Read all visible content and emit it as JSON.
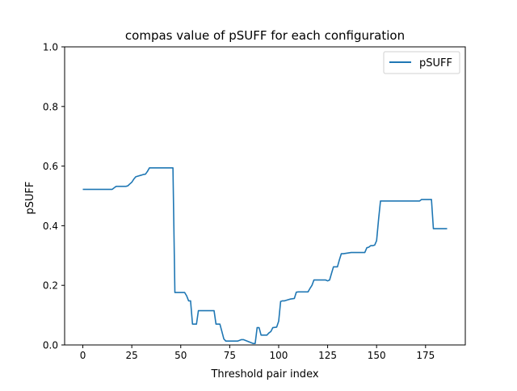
{
  "chart_data": {
    "type": "line",
    "title": "compas value of pSUFF for each configuration",
    "xlabel": "Threshold pair index",
    "ylabel": "pSUFF",
    "xlim": [
      -9.3,
      195.3
    ],
    "ylim": [
      0.0,
      1.0
    ],
    "x_ticks": [
      0,
      25,
      50,
      75,
      100,
      125,
      150,
      175
    ],
    "y_ticks": [
      0.0,
      0.2,
      0.4,
      0.6,
      0.8,
      1.0
    ],
    "x_tick_labels": [
      "0",
      "25",
      "50",
      "75",
      "100",
      "125",
      "150",
      "175"
    ],
    "y_tick_labels": [
      "0.0",
      "0.2",
      "0.4",
      "0.6",
      "0.8",
      "1.0"
    ],
    "grid": false,
    "legend": {
      "position": "top-right",
      "entries": [
        "pSUFF"
      ]
    },
    "series": [
      {
        "name": "pSUFF",
        "color": "#1f77b4",
        "x": [
          0,
          15,
          16,
          17,
          22,
          23,
          24,
          25,
          26,
          27,
          28,
          30,
          31,
          32,
          33,
          34,
          35,
          36,
          46,
          47,
          48,
          52,
          53,
          54,
          55,
          56,
          57,
          58,
          59,
          67,
          68,
          70,
          71,
          72,
          73,
          78,
          79,
          81,
          82,
          87,
          88,
          89,
          90,
          91,
          94,
          95,
          96,
          97,
          99,
          100,
          101,
          102,
          103,
          105,
          106,
          108,
          109,
          110,
          115,
          116,
          117,
          118,
          124,
          125,
          126,
          127,
          128,
          130,
          131,
          132,
          133,
          137,
          138,
          140,
          141,
          143,
          144,
          145,
          146,
          147,
          148,
          149,
          150,
          151,
          152,
          172,
          173,
          178,
          179,
          180,
          186
        ],
        "values": [
          0.522,
          0.522,
          0.527,
          0.532,
          0.532,
          0.534,
          0.54,
          0.546,
          0.556,
          0.564,
          0.566,
          0.57,
          0.572,
          0.573,
          0.582,
          0.594,
          0.594,
          0.594,
          0.594,
          0.176,
          0.176,
          0.176,
          0.165,
          0.148,
          0.148,
          0.07,
          0.07,
          0.07,
          0.115,
          0.115,
          0.07,
          0.07,
          0.045,
          0.02,
          0.013,
          0.013,
          0.013,
          0.018,
          0.018,
          0.005,
          0.005,
          0.058,
          0.058,
          0.033,
          0.033,
          0.04,
          0.045,
          0.058,
          0.06,
          0.08,
          0.146,
          0.148,
          0.148,
          0.152,
          0.154,
          0.156,
          0.177,
          0.178,
          0.178,
          0.19,
          0.2,
          0.218,
          0.218,
          0.215,
          0.218,
          0.24,
          0.262,
          0.262,
          0.285,
          0.306,
          0.306,
          0.31,
          0.31,
          0.31,
          0.31,
          0.31,
          0.31,
          0.326,
          0.328,
          0.333,
          0.333,
          0.335,
          0.35,
          0.42,
          0.483,
          0.483,
          0.488,
          0.488,
          0.39,
          0.39,
          0.39
        ]
      }
    ]
  }
}
